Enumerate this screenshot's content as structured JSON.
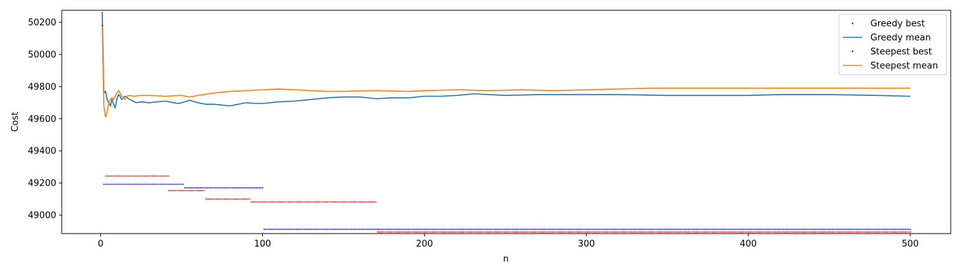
{
  "chart_data": {
    "type": "scatter",
    "title": "",
    "xlabel": "n",
    "ylabel": "Cost",
    "xlim": [
      -24,
      525
    ],
    "ylim": [
      48885,
      50275
    ],
    "xticks": [
      0,
      100,
      200,
      300,
      400,
      500
    ],
    "yticks": [
      49000,
      49200,
      49400,
      49600,
      49800,
      50000,
      50200
    ],
    "grid": false,
    "legend_position": "top-right",
    "series": [
      {
        "name": "Greedy best",
        "kind": "points",
        "color": "#ff0000",
        "segments": [
          {
            "x_start": 1,
            "x_end": 1,
            "y": 50260
          },
          {
            "x_start": 3,
            "x_end": 42,
            "y": 49243
          },
          {
            "x_start": 42,
            "x_end": 64,
            "y": 49153
          },
          {
            "x_start": 65,
            "x_end": 92,
            "y": 49100
          },
          {
            "x_start": 93,
            "x_end": 170,
            "y": 49082
          },
          {
            "x_start": 171,
            "x_end": 500,
            "y": 48895
          }
        ]
      },
      {
        "name": "Greedy mean",
        "kind": "line",
        "color": "#1f77b4",
        "x": [
          1,
          2,
          3,
          4,
          5,
          6,
          7,
          8,
          9,
          10,
          11,
          12,
          13,
          14,
          15,
          16,
          17,
          18,
          20,
          22,
          25,
          30,
          35,
          40,
          45,
          48,
          50,
          55,
          60,
          65,
          70,
          75,
          80,
          85,
          90,
          95,
          100,
          110,
          120,
          130,
          140,
          150,
          160,
          170,
          180,
          190,
          200,
          210,
          220,
          230,
          240,
          250,
          270,
          300,
          320,
          350,
          380,
          400,
          420,
          450,
          480,
          500
        ],
        "y": [
          50265,
          49760,
          49770,
          49720,
          49700,
          49680,
          49720,
          49690,
          49670,
          49720,
          49750,
          49740,
          49720,
          49730,
          49740,
          49735,
          49725,
          49720,
          49710,
          49700,
          49705,
          49700,
          49705,
          49710,
          49700,
          49695,
          49700,
          49715,
          49700,
          49690,
          49690,
          49685,
          49680,
          49690,
          49700,
          49695,
          49695,
          49705,
          49710,
          49720,
          49730,
          49735,
          49735,
          49725,
          49730,
          49730,
          49740,
          49740,
          49745,
          49755,
          49750,
          49745,
          49750,
          49750,
          49750,
          49745,
          49745,
          49745,
          49750,
          49750,
          49745,
          49740
        ]
      },
      {
        "name": "Steepest best",
        "kind": "points",
        "color": "#0000ff",
        "segments": [
          {
            "x_start": 1,
            "x_end": 1,
            "y": 50180
          },
          {
            "x_start": 2,
            "x_end": 51,
            "y": 49192
          },
          {
            "x_start": 52,
            "x_end": 100,
            "y": 49170
          },
          {
            "x_start": 101,
            "x_end": 500,
            "y": 48912
          }
        ]
      },
      {
        "name": "Steepest mean",
        "kind": "line",
        "color": "#ff7f0e",
        "x": [
          1,
          2,
          3,
          4,
          5,
          6,
          7,
          8,
          9,
          10,
          11,
          12,
          13,
          14,
          15,
          16,
          18,
          20,
          25,
          30,
          40,
          50,
          55,
          60,
          70,
          80,
          90,
          100,
          110,
          120,
          130,
          140,
          150,
          170,
          190,
          200,
          220,
          240,
          260,
          280,
          300,
          320,
          340,
          360,
          380,
          400,
          420,
          450,
          480,
          500
        ],
        "y": [
          50170,
          49680,
          49610,
          49640,
          49700,
          49720,
          49730,
          49720,
          49740,
          49760,
          49775,
          49760,
          49740,
          49730,
          49720,
          49740,
          49745,
          49740,
          49745,
          49745,
          49740,
          49745,
          49735,
          49745,
          49760,
          49770,
          49775,
          49780,
          49785,
          49780,
          49775,
          49770,
          49770,
          49775,
          49770,
          49775,
          49780,
          49775,
          49780,
          49775,
          49780,
          49785,
          49790,
          49790,
          49790,
          49790,
          49790,
          49790,
          49790,
          49790
        ]
      }
    ]
  }
}
